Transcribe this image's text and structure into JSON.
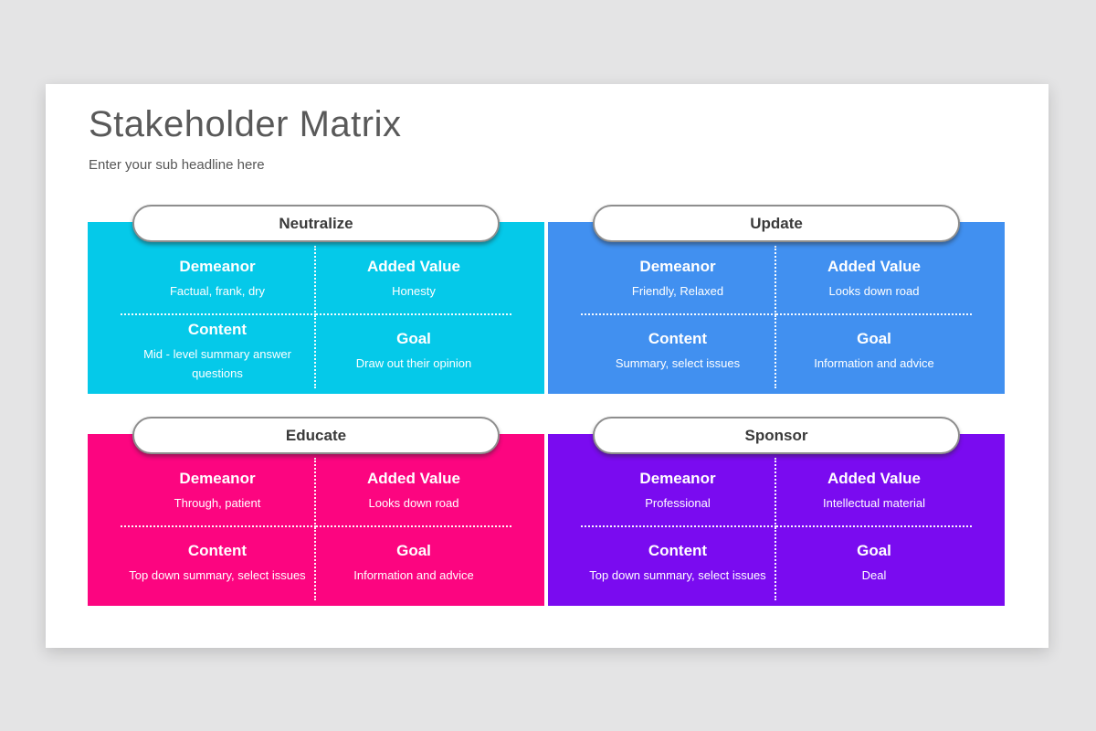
{
  "page": {
    "background_color": "#e4e4e5",
    "slide_background_color": "#ffffff"
  },
  "header": {
    "title": "Stakeholder Matrix",
    "subtitle": "Enter your sub headline here"
  },
  "quadrants": [
    {
      "label": "Neutralize",
      "color": "#05c9e9",
      "cells": [
        {
          "heading": "Demeanor",
          "text": "Factual, frank, dry"
        },
        {
          "heading": "Added Value",
          "text": "Honesty"
        },
        {
          "heading": "Content",
          "text": "Mid - level summary answer questions"
        },
        {
          "heading": "Goal",
          "text": "Draw out their opinion"
        }
      ]
    },
    {
      "label": "Update",
      "color": "#4190f0",
      "cells": [
        {
          "heading": "Demeanor",
          "text": "Friendly, Relaxed"
        },
        {
          "heading": "Added Value",
          "text": "Looks down road"
        },
        {
          "heading": "Content",
          "text": "Summary, select issues"
        },
        {
          "heading": "Goal",
          "text": "Information and advice"
        }
      ]
    },
    {
      "label": "Educate",
      "color": "#fc0580",
      "cells": [
        {
          "heading": "Demeanor",
          "text": "Through, patient"
        },
        {
          "heading": "Added Value",
          "text": "Looks down road"
        },
        {
          "heading": "Content",
          "text": "Top down summary, select issues"
        },
        {
          "heading": "Goal",
          "text": "Information and advice"
        }
      ]
    },
    {
      "label": "Sponsor",
      "color": "#7a0bf0",
      "cells": [
        {
          "heading": "Demeanor",
          "text": "Professional"
        },
        {
          "heading": "Added Value",
          "text": "Intellectual material"
        },
        {
          "heading": "Content",
          "text": "Top down summary, select issues"
        },
        {
          "heading": "Goal",
          "text": "Deal"
        }
      ]
    }
  ]
}
